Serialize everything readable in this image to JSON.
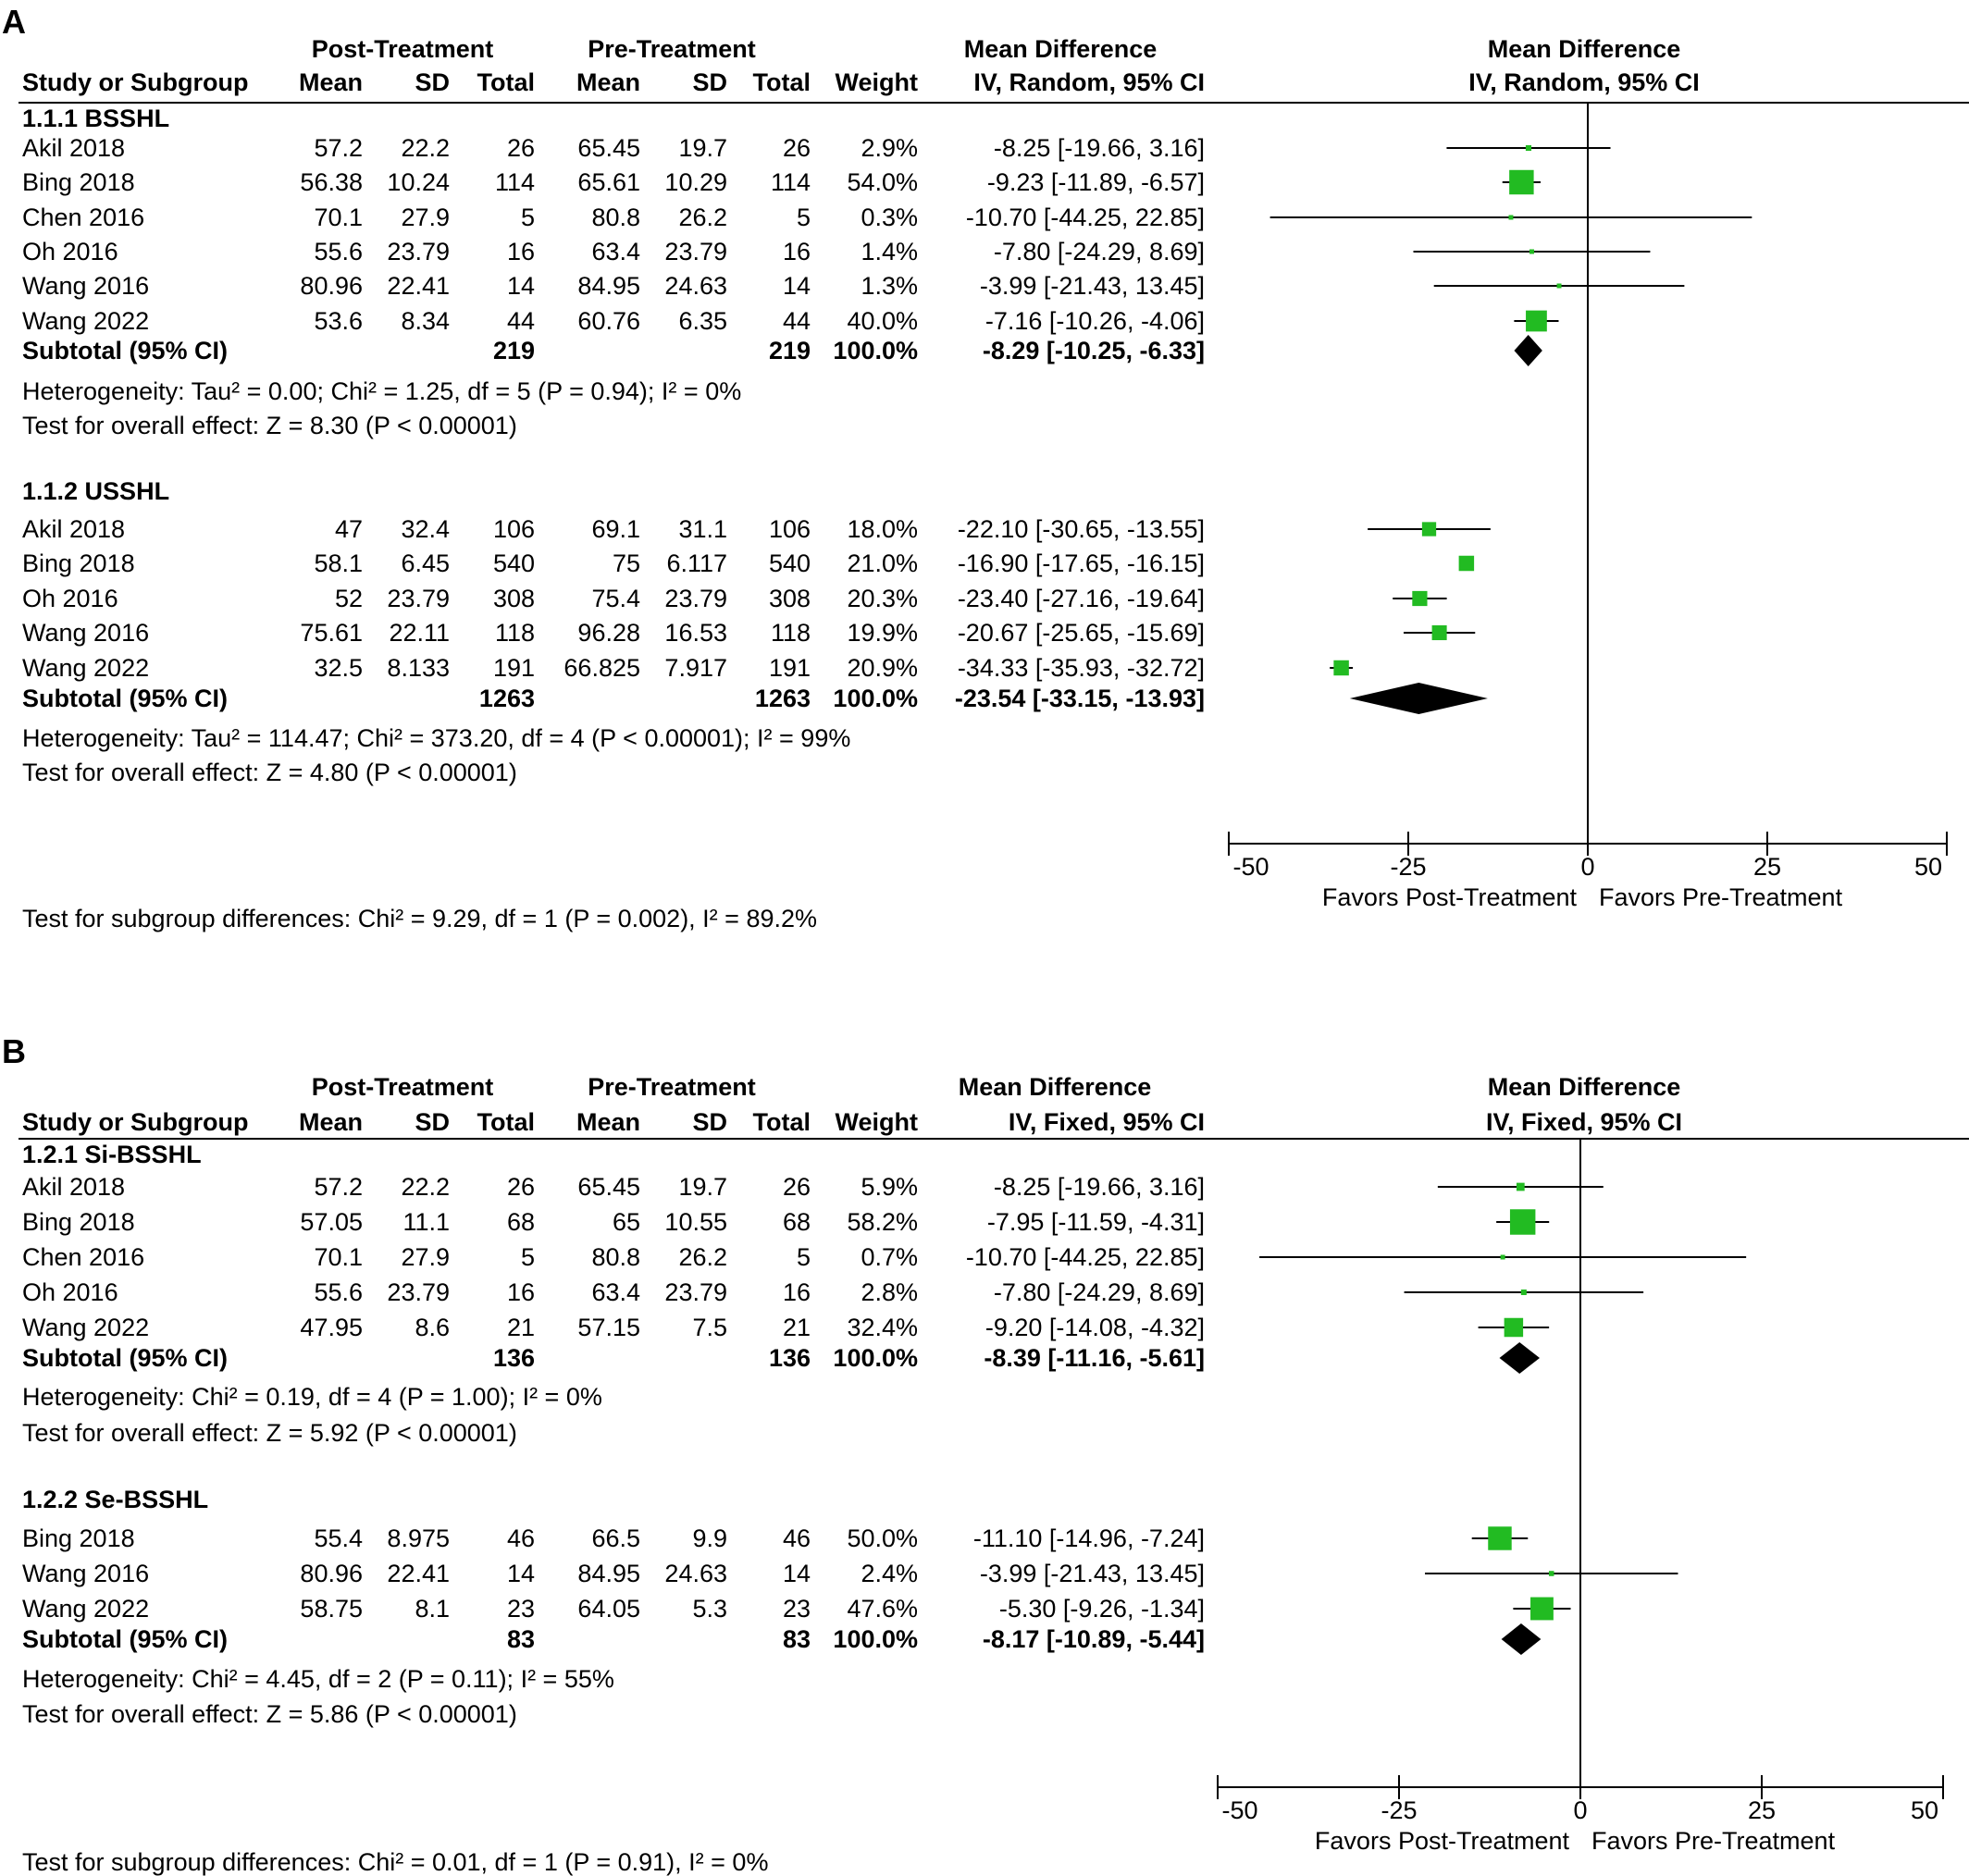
{
  "panels": [
    {
      "letter": "A",
      "headers": {
        "group1": "Post-Treatment",
        "group2": "Pre-Treatment",
        "md_title": "Mean Difference",
        "md_method": "IV, Random, 95% CI",
        "study": "Study or Subgroup",
        "mean": "Mean",
        "sd": "SD",
        "total": "Total",
        "weight": "Weight"
      },
      "subgroups": [
        {
          "title": "1.1.1 BSSHL",
          "studies": [
            {
              "name": "Akil 2018",
              "mean1": "57.2",
              "sd1": "22.2",
              "n1": "26",
              "mean2": "65.45",
              "sd2": "19.7",
              "n2": "26",
              "weight": "2.9%",
              "ci": "-8.25 [-19.66, 3.16]",
              "md": -8.25,
              "lo": -19.66,
              "hi": 3.16,
              "w": 2.9
            },
            {
              "name": "Bing 2018",
              "mean1": "56.38",
              "sd1": "10.24",
              "n1": "114",
              "mean2": "65.61",
              "sd2": "10.29",
              "n2": "114",
              "weight": "54.0%",
              "ci": "-9.23 [-11.89, -6.57]",
              "md": -9.23,
              "lo": -11.89,
              "hi": -6.57,
              "w": 54.0
            },
            {
              "name": "Chen 2016",
              "mean1": "70.1",
              "sd1": "27.9",
              "n1": "5",
              "mean2": "80.8",
              "sd2": "26.2",
              "n2": "5",
              "weight": "0.3%",
              "ci": "-10.70 [-44.25, 22.85]",
              "md": -10.7,
              "lo": -44.25,
              "hi": 22.85,
              "w": 0.3
            },
            {
              "name": "Oh 2016",
              "mean1": "55.6",
              "sd1": "23.79",
              "n1": "16",
              "mean2": "63.4",
              "sd2": "23.79",
              "n2": "16",
              "weight": "1.4%",
              "ci": "-7.80 [-24.29, 8.69]",
              "md": -7.8,
              "lo": -24.29,
              "hi": 8.69,
              "w": 1.4
            },
            {
              "name": "Wang 2016",
              "mean1": "80.96",
              "sd1": "22.41",
              "n1": "14",
              "mean2": "84.95",
              "sd2": "24.63",
              "n2": "14",
              "weight": "1.3%",
              "ci": "-3.99 [-21.43, 13.45]",
              "md": -3.99,
              "lo": -21.43,
              "hi": 13.45,
              "w": 1.3
            },
            {
              "name": "Wang 2022",
              "mean1": "53.6",
              "sd1": "8.34",
              "n1": "44",
              "mean2": "60.76",
              "sd2": "6.35",
              "n2": "44",
              "weight": "40.0%",
              "ci": "-7.16 [-10.26, -4.06]",
              "md": -7.16,
              "lo": -10.26,
              "hi": -4.06,
              "w": 40.0
            }
          ],
          "subtotal": {
            "label": "Subtotal (95% CI)",
            "n1": "219",
            "n2": "219",
            "weight": "100.0%",
            "ci": "-8.29 [-10.25, -6.33]",
            "md": -8.29,
            "lo": -10.25,
            "hi": -6.33
          },
          "heterogeneity": "Heterogeneity: Tau² = 0.00; Chi² = 1.25, df = 5 (P = 0.94); I² = 0%",
          "overall": "Test for overall effect: Z = 8.30 (P < 0.00001)"
        },
        {
          "title": "1.1.2 USSHL",
          "studies": [
            {
              "name": "Akil 2018",
              "mean1": "47",
              "sd1": "32.4",
              "n1": "106",
              "mean2": "69.1",
              "sd2": "31.1",
              "n2": "106",
              "weight": "18.0%",
              "ci": "-22.10 [-30.65, -13.55]",
              "md": -22.1,
              "lo": -30.65,
              "hi": -13.55,
              "w": 18.0
            },
            {
              "name": "Bing 2018",
              "mean1": "58.1",
              "sd1": "6.45",
              "n1": "540",
              "mean2": "75",
              "sd2": "6.117",
              "n2": "540",
              "weight": "21.0%",
              "ci": "-16.90 [-17.65, -16.15]",
              "md": -16.9,
              "lo": -17.65,
              "hi": -16.15,
              "w": 21.0
            },
            {
              "name": "Oh 2016",
              "mean1": "52",
              "sd1": "23.79",
              "n1": "308",
              "mean2": "75.4",
              "sd2": "23.79",
              "n2": "308",
              "weight": "20.3%",
              "ci": "-23.40 [-27.16, -19.64]",
              "md": -23.4,
              "lo": -27.16,
              "hi": -19.64,
              "w": 20.3
            },
            {
              "name": "Wang 2016",
              "mean1": "75.61",
              "sd1": "22.11",
              "n1": "118",
              "mean2": "96.28",
              "sd2": "16.53",
              "n2": "118",
              "weight": "19.9%",
              "ci": "-20.67 [-25.65, -15.69]",
              "md": -20.67,
              "lo": -25.65,
              "hi": -15.69,
              "w": 19.9
            },
            {
              "name": "Wang 2022",
              "mean1": "32.5",
              "sd1": "8.133",
              "n1": "191",
              "mean2": "66.825",
              "sd2": "7.917",
              "n2": "191",
              "weight": "20.9%",
              "ci": "-34.33 [-35.93, -32.72]",
              "md": -34.33,
              "lo": -35.93,
              "hi": -32.72,
              "w": 20.9
            }
          ],
          "subtotal": {
            "label": "Subtotal (95% CI)",
            "n1": "1263",
            "n2": "1263",
            "weight": "100.0%",
            "ci": "-23.54 [-33.15, -13.93]",
            "md": -23.54,
            "lo": -33.15,
            "hi": -13.93
          },
          "heterogeneity": "Heterogeneity: Tau² = 114.47; Chi² = 373.20, df = 4 (P < 0.00001); I² = 99%",
          "overall": "Test for overall effect: Z = 4.80 (P < 0.00001)"
        }
      ],
      "axis": {
        "ticks": [
          "-50",
          "-25",
          "0",
          "25",
          "50"
        ],
        "left_label": "Favors Post-Treatment",
        "right_label": "Favors Pre-Treatment"
      },
      "subgroup_test": "Test for subgroup differences: Chi² = 9.29, df = 1 (P = 0.002), I² = 89.2%"
    },
    {
      "letter": "B",
      "headers": {
        "group1": "Post-Treatment",
        "group2": "Pre-Treatment",
        "md_title": "Mean Difference",
        "md_method": "IV, Fixed, 95% CI",
        "study": "Study or Subgroup",
        "mean": "Mean",
        "sd": "SD",
        "total": "Total",
        "weight": "Weight"
      },
      "subgroups": [
        {
          "title": "1.2.1 Si-BSSHL",
          "studies": [
            {
              "name": "Akil 2018",
              "mean1": "57.2",
              "sd1": "22.2",
              "n1": "26",
              "mean2": "65.45",
              "sd2": "19.7",
              "n2": "26",
              "weight": "5.9%",
              "ci": "-8.25 [-19.66, 3.16]",
              "md": -8.25,
              "lo": -19.66,
              "hi": 3.16,
              "w": 5.9
            },
            {
              "name": "Bing 2018",
              "mean1": "57.05",
              "sd1": "11.1",
              "n1": "68",
              "mean2": "65",
              "sd2": "10.55",
              "n2": "68",
              "weight": "58.2%",
              "ci": "-7.95 [-11.59, -4.31]",
              "md": -7.95,
              "lo": -11.59,
              "hi": -4.31,
              "w": 58.2
            },
            {
              "name": "Chen 2016",
              "mean1": "70.1",
              "sd1": "27.9",
              "n1": "5",
              "mean2": "80.8",
              "sd2": "26.2",
              "n2": "5",
              "weight": "0.7%",
              "ci": "-10.70 [-44.25, 22.85]",
              "md": -10.7,
              "lo": -44.25,
              "hi": 22.85,
              "w": 0.7
            },
            {
              "name": "Oh 2016",
              "mean1": "55.6",
              "sd1": "23.79",
              "n1": "16",
              "mean2": "63.4",
              "sd2": "23.79",
              "n2": "16",
              "weight": "2.8%",
              "ci": "-7.80 [-24.29, 8.69]",
              "md": -7.8,
              "lo": -24.29,
              "hi": 8.69,
              "w": 2.8
            },
            {
              "name": "Wang 2022",
              "mean1": "47.95",
              "sd1": "8.6",
              "n1": "21",
              "mean2": "57.15",
              "sd2": "7.5",
              "n2": "21",
              "weight": "32.4%",
              "ci": "-9.20 [-14.08, -4.32]",
              "md": -9.2,
              "lo": -14.08,
              "hi": -4.32,
              "w": 32.4
            }
          ],
          "subtotal": {
            "label": "Subtotal (95% CI)",
            "n1": "136",
            "n2": "136",
            "weight": "100.0%",
            "ci": "-8.39 [-11.16, -5.61]",
            "md": -8.39,
            "lo": -11.16,
            "hi": -5.61
          },
          "heterogeneity": "Heterogeneity: Chi² = 0.19, df = 4 (P = 1.00); I² = 0%",
          "overall": "Test for overall effect: Z = 5.92 (P < 0.00001)"
        },
        {
          "title": "1.2.2 Se-BSSHL",
          "studies": [
            {
              "name": "Bing 2018",
              "mean1": "55.4",
              "sd1": "8.975",
              "n1": "46",
              "mean2": "66.5",
              "sd2": "9.9",
              "n2": "46",
              "weight": "50.0%",
              "ci": "-11.10 [-14.96, -7.24]",
              "md": -11.1,
              "lo": -14.96,
              "hi": -7.24,
              "w": 50.0
            },
            {
              "name": "Wang 2016",
              "mean1": "80.96",
              "sd1": "22.41",
              "n1": "14",
              "mean2": "84.95",
              "sd2": "24.63",
              "n2": "14",
              "weight": "2.4%",
              "ci": "-3.99 [-21.43, 13.45]",
              "md": -3.99,
              "lo": -21.43,
              "hi": 13.45,
              "w": 2.4
            },
            {
              "name": "Wang 2022",
              "mean1": "58.75",
              "sd1": "8.1",
              "n1": "23",
              "mean2": "64.05",
              "sd2": "5.3",
              "n2": "23",
              "weight": "47.6%",
              "ci": "-5.30 [-9.26, -1.34]",
              "md": -5.3,
              "lo": -9.26,
              "hi": -1.34,
              "w": 47.6
            }
          ],
          "subtotal": {
            "label": "Subtotal (95% CI)",
            "n1": "83",
            "n2": "83",
            "weight": "100.0%",
            "ci": "-8.17 [-10.89, -5.44]",
            "md": -8.17,
            "lo": -10.89,
            "hi": -5.44
          },
          "heterogeneity": "Heterogeneity: Chi² = 4.45, df = 2 (P = 0.11); I² = 55%",
          "overall": "Test for overall effect: Z = 5.86 (P < 0.00001)"
        }
      ],
      "axis": {
        "ticks": [
          "-50",
          "-25",
          "0",
          "25",
          "50"
        ],
        "left_label": "Favors Post-Treatment",
        "right_label": "Favors Pre-Treatment"
      },
      "subgroup_test": "Test for subgroup differences: Chi² = 0.01, df = 1 (P = 0.91), I² = 0%"
    }
  ],
  "chart_data": {
    "type": "forest",
    "x_range": [
      -50,
      50
    ],
    "colors": {
      "study_marker": "#22bb22",
      "summary_diamond": "#000000",
      "lines": "#000000"
    }
  }
}
